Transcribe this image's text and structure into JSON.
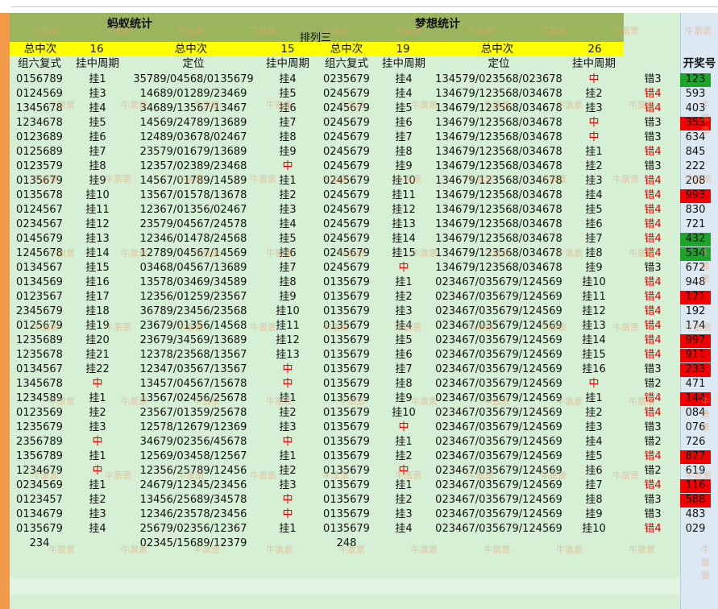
{
  "titles": {
    "left": "蚂蚁统计",
    "right": "梦想统计",
    "center": "排列三"
  },
  "summary": {
    "label1": "总中次",
    "val1": "16",
    "label2": "总中次",
    "val2": "15",
    "label3": "总中次",
    "val3": "19",
    "label4": "总中次",
    "val4": "26"
  },
  "headers": {
    "h1": "组六复式",
    "h2": "挂中周期",
    "h3": "定位",
    "h4": "挂中周期",
    "h5": "组六复式",
    "h6": "挂中周期",
    "h7": "定位",
    "h8": "挂中周期",
    "h10": "开奖号"
  },
  "rows": [
    [
      "0156789",
      "挂1",
      "35789/04568/0135679",
      "挂4",
      "0235679",
      "挂4",
      "134579/023568/023678",
      "中",
      "错3",
      "123"
    ],
    [
      "0124569",
      "挂3",
      "14689/01289/23469",
      "挂5",
      "0245679",
      "挂4",
      "134679/123568/034678",
      "挂2",
      "错4",
      "593"
    ],
    [
      "1345678",
      "挂4",
      "34689/13567/13467",
      "挂6",
      "0245679",
      "挂5",
      "134679/123568/034678",
      "挂3",
      "错4",
      "403"
    ],
    [
      "1234678",
      "挂5",
      "14569/24789/13689",
      "挂7",
      "0245679",
      "挂6",
      "134679/123568/034678",
      "中",
      "错3",
      "353"
    ],
    [
      "0123689",
      "挂6",
      "12489/03678/02467",
      "挂8",
      "0245679",
      "挂7",
      "134679/123568/034678",
      "中",
      "错3",
      "634"
    ],
    [
      "0125689",
      "挂7",
      "23579/01679/13689",
      "挂9",
      "0245679",
      "挂8",
      "134679/123568/034678",
      "挂1",
      "错4",
      "845"
    ],
    [
      "0123579",
      "挂8",
      "12357/02389/23468",
      "中",
      "0245679",
      "挂9",
      "134679/123568/034678",
      "挂2",
      "错3",
      "222"
    ],
    [
      "0135679",
      "挂9",
      "14567/01789/14589",
      "挂1",
      "0245679",
      "挂10",
      "134679/123568/034678",
      "挂3",
      "错4",
      "208"
    ],
    [
      "0135678",
      "挂10",
      "13567/01578/13678",
      "挂2",
      "0245679",
      "挂11",
      "134679/123568/034678",
      "挂4",
      "错4",
      "993"
    ],
    [
      "0124567",
      "挂11",
      "12367/01356/02467",
      "挂3",
      "0245679",
      "挂12",
      "134679/123568/034678",
      "挂5",
      "错4",
      "830"
    ],
    [
      "0234567",
      "挂12",
      "23579/04567/24578",
      "挂4",
      "0245679",
      "挂13",
      "134679/123568/034678",
      "挂6",
      "错4",
      "721"
    ],
    [
      "0145679",
      "挂13",
      "12346/01478/24568",
      "挂5",
      "0245679",
      "挂14",
      "134679/123568/034678",
      "挂7",
      "错4",
      "432"
    ],
    [
      "1245678",
      "挂14",
      "12789/04567/14569",
      "挂6",
      "0245679",
      "挂15",
      "134679/123568/034678",
      "挂8",
      "错4",
      "534"
    ],
    [
      "0134567",
      "挂15",
      "03468/04567/13689",
      "挂7",
      "0245679",
      "中",
      "134679/123568/034678",
      "挂9",
      "错3",
      "672"
    ],
    [
      "0134569",
      "挂16",
      "13578/03469/34589",
      "挂8",
      "0135679",
      "挂1",
      "023467/035679/124569",
      "挂10",
      "错4",
      "948"
    ],
    [
      "0123567",
      "挂17",
      "12356/01259/23567",
      "挂9",
      "0135679",
      "挂2",
      "023467/035679/124569",
      "挂11",
      "错4",
      "171"
    ],
    [
      "2345679",
      "挂18",
      "36789/23456/23568",
      "挂10",
      "0135679",
      "挂3",
      "023467/035679/124569",
      "挂12",
      "错4",
      "192"
    ],
    [
      "0125679",
      "挂19",
      "23679/01356/14568",
      "挂11",
      "0135679",
      "挂4",
      "023467/035679/124569",
      "挂13",
      "错4",
      "174"
    ],
    [
      "1235689",
      "挂20",
      "23679/34569/13689",
      "挂12",
      "0135679",
      "挂5",
      "023467/035679/124569",
      "挂14",
      "错4",
      "997"
    ],
    [
      "1235678",
      "挂21",
      "12378/23568/13567",
      "挂13",
      "0135679",
      "挂6",
      "023467/035679/124569",
      "挂15",
      "错4",
      "911"
    ],
    [
      "0134567",
      "挂22",
      "12347/03567/13567",
      "中",
      "0135679",
      "挂7",
      "023467/035679/124569",
      "挂16",
      "错3",
      "233"
    ],
    [
      "1345678",
      "中",
      "13457/04567/15678",
      "中",
      "0135679",
      "挂8",
      "023467/035679/124569",
      "中",
      "错2",
      "471"
    ],
    [
      "1234589",
      "挂1",
      "13567/02456/25678",
      "挂1",
      "0135679",
      "挂9",
      "023467/035679/124569",
      "挂1",
      "错4",
      "144"
    ],
    [
      "0123569",
      "挂2",
      "23567/01359/25678",
      "挂2",
      "0135679",
      "挂10",
      "023467/035679/124569",
      "挂2",
      "错4",
      "084"
    ],
    [
      "1235679",
      "挂3",
      "12578/12679/12369",
      "挂3",
      "0135679",
      "中",
      "023467/035679/124569",
      "挂3",
      "错3",
      "076"
    ],
    [
      "2356789",
      "中",
      "34679/02356/45678",
      "中",
      "0135679",
      "挂1",
      "023467/035679/124569",
      "挂4",
      "错2",
      "726"
    ],
    [
      "1356789",
      "挂1",
      "12569/03458/12567",
      "挂1",
      "0135679",
      "挂2",
      "023467/035679/124569",
      "挂5",
      "错4",
      "877"
    ],
    [
      "1234679",
      "中",
      "12356/25789/12456",
      "挂2",
      "0135679",
      "中",
      "023467/035679/124569",
      "挂6",
      "错2",
      "619"
    ],
    [
      "0234569",
      "挂1",
      "24679/12345/23456",
      "挂3",
      "0135679",
      "挂1",
      "023467/035679/124569",
      "挂7",
      "错4",
      "116"
    ],
    [
      "0123457",
      "挂2",
      "13456/25689/34578",
      "中",
      "0135679",
      "挂2",
      "023467/035679/124569",
      "挂8",
      "错3",
      "588"
    ],
    [
      "0134679",
      "挂3",
      "12346/23578/23456",
      "中",
      "0135679",
      "挂3",
      "023467/035679/124569",
      "挂9",
      "错3",
      "483"
    ],
    [
      "0135679",
      "挂4",
      "25679/02356/12367",
      "挂1",
      "0135679",
      "挂4",
      "023467/035679/124569",
      "挂10",
      "错4",
      "029"
    ]
  ],
  "pending": {
    "c1": "234",
    "c3": "02345/15689/12379",
    "c5": "248"
  },
  "highlights": {
    "0": "green",
    "3": "red",
    "8": "red",
    "11": "green",
    "12": "green",
    "15": "red",
    "18": "red",
    "19": "red",
    "20": "red",
    "22": "red",
    "26": "red",
    "28": "red",
    "29": "red"
  },
  "watermark": "牛票票",
  "colors": {
    "hit_green": "#1fa32c",
    "hit_red": "#f00000",
    "text_red": "#e00000",
    "olive": "#9bb55f",
    "yellow": "#ffff00",
    "orange": "#f29a4a"
  }
}
